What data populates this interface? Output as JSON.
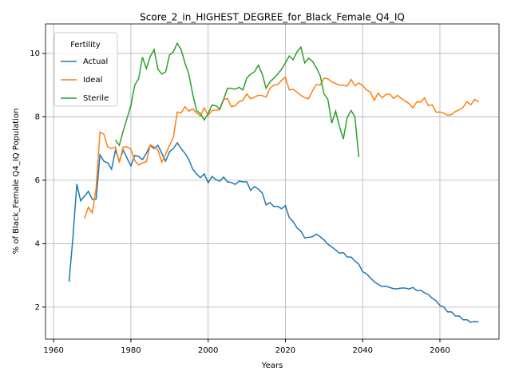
{
  "chart_data": {
    "type": "line",
    "title": "Score_2_in_HIGHEST_DEGREE_for_Black_Female_Q4_IQ",
    "xlabel": "Years",
    "ylabel": "% of Black_Female Q4_IQ Population",
    "x": [
      1964,
      1965,
      1966,
      1967,
      1968,
      1969,
      1970,
      1971,
      1972,
      1973,
      1974,
      1975,
      1976,
      1977,
      1978,
      1979,
      1980,
      1981,
      1982,
      1983,
      1984,
      1985,
      1986,
      1987,
      1988,
      1989,
      1990,
      1991,
      1992,
      1993,
      1994,
      1995,
      1996,
      1997,
      1998,
      1999,
      2000,
      2001,
      2002,
      2003,
      2004,
      2005,
      2006,
      2007,
      2008,
      2009,
      2010,
      2011,
      2012,
      2013,
      2014,
      2015,
      2016,
      2017,
      2018,
      2019,
      2020,
      2021,
      2022,
      2023,
      2024,
      2025,
      2026,
      2027,
      2028,
      2029,
      2030,
      2031,
      2032,
      2033,
      2034,
      2035,
      2036,
      2037,
      2038,
      2039,
      2040,
      2041,
      2042,
      2043,
      2044,
      2045,
      2046,
      2047,
      2048,
      2049,
      2050,
      2051,
      2052,
      2053,
      2054,
      2055,
      2056,
      2057,
      2058,
      2059,
      2060,
      2061,
      2062,
      2063,
      2064,
      2065,
      2066,
      2067,
      2068,
      2069,
      2070
    ],
    "series": [
      {
        "name": "Actual",
        "color": "#1f77b4",
        "values": [
          2.8,
          4.2,
          5.88,
          5.35,
          5.5,
          5.65,
          5.4,
          5.4,
          6.8,
          6.6,
          6.55,
          6.35,
          6.95,
          6.6,
          6.95,
          6.7,
          6.45,
          6.78,
          6.75,
          6.65,
          6.85,
          7.1,
          7.0,
          7.1,
          6.85,
          6.6,
          6.9,
          7.0,
          7.18,
          7.0,
          6.85,
          6.65,
          6.35,
          6.2,
          6.08,
          6.2,
          5.92,
          6.12,
          6.02,
          5.97,
          6.1,
          5.95,
          5.93,
          5.87,
          5.97,
          5.95,
          5.95,
          5.68,
          5.8,
          5.72,
          5.6,
          5.22,
          5.3,
          5.17,
          5.18,
          5.1,
          5.2,
          4.82,
          4.7,
          4.5,
          4.4,
          4.18,
          4.2,
          4.22,
          4.3,
          4.22,
          4.12,
          3.98,
          3.9,
          3.8,
          3.7,
          3.72,
          3.58,
          3.58,
          3.45,
          3.35,
          3.12,
          3.05,
          2.92,
          2.8,
          2.72,
          2.65,
          2.66,
          2.62,
          2.58,
          2.58,
          2.6,
          2.6,
          2.57,
          2.62,
          2.52,
          2.53,
          2.45,
          2.4,
          2.28,
          2.2,
          2.05,
          2.0,
          1.85,
          1.85,
          1.72,
          1.72,
          1.6,
          1.6,
          1.52,
          1.55,
          1.53
        ]
      },
      {
        "name": "Ideal",
        "color": "#ff7f0e",
        "values": [
          null,
          null,
          null,
          null,
          4.8,
          5.15,
          4.97,
          5.75,
          7.52,
          7.45,
          7.05,
          7.0,
          7.05,
          6.55,
          7.05,
          7.05,
          6.98,
          6.62,
          6.48,
          6.55,
          6.58,
          7.12,
          7.05,
          6.95,
          6.57,
          6.82,
          7.1,
          7.35,
          8.15,
          8.12,
          8.32,
          8.18,
          8.25,
          8.12,
          8.03,
          8.28,
          8.05,
          8.2,
          8.22,
          8.22,
          8.55,
          8.58,
          8.32,
          8.35,
          8.48,
          8.52,
          8.72,
          8.57,
          8.62,
          8.68,
          8.67,
          8.62,
          8.9,
          9.0,
          9.02,
          9.15,
          9.25,
          8.85,
          8.87,
          8.78,
          8.68,
          8.6,
          8.57,
          8.82,
          9.02,
          9.0,
          9.22,
          9.2,
          9.1,
          9.05,
          9.0,
          9.0,
          8.97,
          9.18,
          8.98,
          9.07,
          8.98,
          8.85,
          8.78,
          8.52,
          8.75,
          8.6,
          8.7,
          8.72,
          8.58,
          8.68,
          8.58,
          8.5,
          8.42,
          8.28,
          8.47,
          8.47,
          8.6,
          8.35,
          8.38,
          8.15,
          8.15,
          8.12,
          8.05,
          8.07,
          8.17,
          8.22,
          8.3,
          8.48,
          8.38,
          8.55,
          8.47
        ]
      },
      {
        "name": "Sterile",
        "color": "#2ca02c",
        "values": [
          null,
          null,
          null,
          null,
          null,
          null,
          null,
          null,
          null,
          null,
          null,
          null,
          7.27,
          7.1,
          7.55,
          7.95,
          8.35,
          9.0,
          9.2,
          9.88,
          9.52,
          9.9,
          10.12,
          9.5,
          9.35,
          9.42,
          9.95,
          10.05,
          10.32,
          10.12,
          9.7,
          9.35,
          8.72,
          8.2,
          8.1,
          7.9,
          8.1,
          8.37,
          8.35,
          8.25,
          8.55,
          8.9,
          8.9,
          8.87,
          8.93,
          8.85,
          9.22,
          9.35,
          9.42,
          9.63,
          9.35,
          8.9,
          9.1,
          9.22,
          9.35,
          9.5,
          9.7,
          9.92,
          9.8,
          10.05,
          10.2,
          9.7,
          9.85,
          9.75,
          9.55,
          9.3,
          8.72,
          8.55,
          7.8,
          8.18,
          7.7,
          7.3,
          7.98,
          8.2,
          8.0,
          6.73,
          null,
          null,
          null,
          null,
          null,
          null,
          null,
          null,
          null,
          null,
          null,
          null,
          null,
          null,
          null,
          null,
          null,
          null,
          null,
          null,
          null,
          null,
          null,
          null,
          null,
          null,
          null,
          null,
          null,
          null,
          null
        ]
      }
    ],
    "xlim": [
      1957.9,
      2075.3
    ],
    "ylim": [
      0.99,
      10.93
    ],
    "xticks": [
      1960,
      1980,
      2000,
      2020,
      2040,
      2060
    ],
    "yticks": [
      2,
      4,
      6,
      8,
      10
    ],
    "grid": true,
    "legend": {
      "title": "Fertility",
      "loc": "upper left"
    }
  }
}
